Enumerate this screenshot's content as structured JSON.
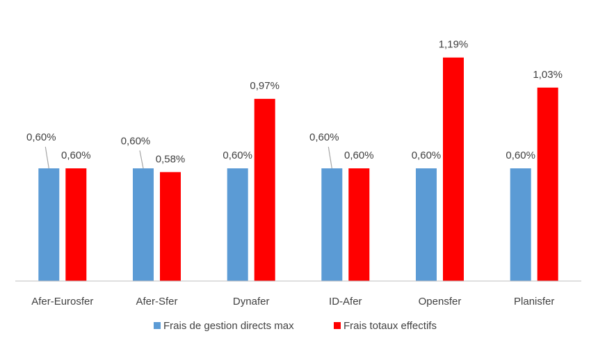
{
  "chart_data": {
    "type": "bar",
    "title": "",
    "xlabel": "",
    "ylabel": "",
    "ylim": [
      0,
      1.25
    ],
    "grid": false,
    "legend_position": "bottom",
    "categories": [
      "Afer-Eurosfer",
      "Afer-Sfer",
      "Dynafer",
      "ID-Afer",
      "Opensfer",
      "Planisfer"
    ],
    "series": [
      {
        "name": "Frais de gestion directs max",
        "color": "#5B9BD5",
        "values": [
          0.6,
          0.6,
          0.6,
          0.6,
          0.6,
          0.6
        ],
        "labels": [
          "0,60%",
          "0,60%",
          "0,60%",
          "0,60%",
          "0,60%",
          "0,60%"
        ]
      },
      {
        "name": "Frais totaux effectifs",
        "color": "#FF0000",
        "values": [
          0.6,
          0.58,
          0.97,
          0.6,
          1.19,
          1.03
        ],
        "labels": [
          "0,60%",
          "0,58%",
          "0,97%",
          "0,60%",
          "1,19%",
          "1,03%"
        ]
      }
    ]
  }
}
